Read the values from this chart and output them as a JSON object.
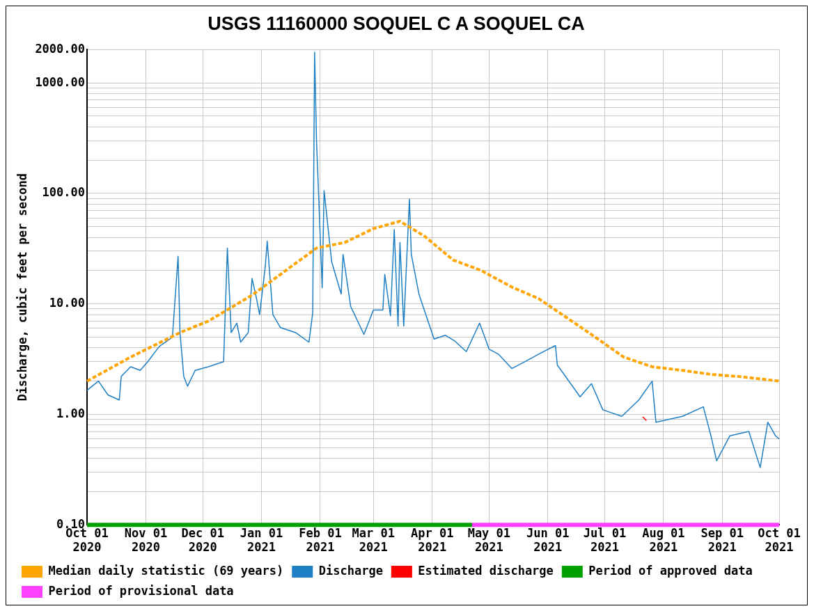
{
  "chart_data": {
    "type": "line",
    "title": "USGS 11160000 SOQUEL C A SOQUEL CA",
    "ylabel": "Discharge, cubic feet per second",
    "log": "y",
    "grid": true,
    "legend": "bottom",
    "marker": "none",
    "xlim": [
      "2020-10-01",
      "2021-10-01"
    ],
    "xticks": [
      {
        "value": "2020-10-01",
        "label": "Oct 01\n2020"
      },
      {
        "value": "2020-11-01",
        "label": "Nov 01\n2020"
      },
      {
        "value": "2020-12-01",
        "label": "Dec 01\n2020"
      },
      {
        "value": "2021-01-01",
        "label": "Jan 01\n2021"
      },
      {
        "value": "2021-02-01",
        "label": "Feb 01\n2021"
      },
      {
        "value": "2021-03-01",
        "label": "Mar 01\n2021"
      },
      {
        "value": "2021-04-01",
        "label": "Apr 01\n2021"
      },
      {
        "value": "2021-05-01",
        "label": "May 01\n2021"
      },
      {
        "value": "2021-06-01",
        "label": "Jun 01\n2021"
      },
      {
        "value": "2021-07-01",
        "label": "Jul 01\n2021"
      },
      {
        "value": "2021-08-01",
        "label": "Aug 01\n2021"
      },
      {
        "value": "2021-09-01",
        "label": "Sep 01\n2021"
      },
      {
        "value": "2021-10-01",
        "label": "Oct 01\n2021"
      }
    ],
    "ylim": [
      0.1,
      2000
    ],
    "yticks": [
      {
        "value": 0.1,
        "label": "0.10"
      },
      {
        "value": 0.2,
        "label": null
      },
      {
        "value": 0.3,
        "label": null
      },
      {
        "value": 0.4,
        "label": null
      },
      {
        "value": 0.5,
        "label": null
      },
      {
        "value": 0.6,
        "label": null
      },
      {
        "value": 0.7,
        "label": null
      },
      {
        "value": 0.8,
        "label": null
      },
      {
        "value": 0.9,
        "label": null
      },
      {
        "value": 1,
        "label": "1.00"
      },
      {
        "value": 2,
        "label": null
      },
      {
        "value": 3,
        "label": null
      },
      {
        "value": 4,
        "label": null
      },
      {
        "value": 5,
        "label": null
      },
      {
        "value": 6,
        "label": null
      },
      {
        "value": 7,
        "label": null
      },
      {
        "value": 8,
        "label": null
      },
      {
        "value": 9,
        "label": null
      },
      {
        "value": 10,
        "label": "10.00"
      },
      {
        "value": 20,
        "label": null
      },
      {
        "value": 30,
        "label": null
      },
      {
        "value": 40,
        "label": null
      },
      {
        "value": 50,
        "label": null
      },
      {
        "value": 60,
        "label": null
      },
      {
        "value": 70,
        "label": null
      },
      {
        "value": 80,
        "label": null
      },
      {
        "value": 90,
        "label": null
      },
      {
        "value": 100,
        "label": "100.00"
      },
      {
        "value": 200,
        "label": null
      },
      {
        "value": 300,
        "label": null
      },
      {
        "value": 400,
        "label": null
      },
      {
        "value": 500,
        "label": null
      },
      {
        "value": 600,
        "label": null
      },
      {
        "value": 700,
        "label": null
      },
      {
        "value": 800,
        "label": null
      },
      {
        "value": 900,
        "label": null
      },
      {
        "value": 1000,
        "label": "1000.00"
      },
      {
        "value": 2000,
        "label": "2000.00"
      }
    ],
    "series": [
      {
        "name": "Median daily statistic (69 years)",
        "color": "#ffa500",
        "line_style": "dashed",
        "x": [
          "2020-10-01",
          "2020-10-24",
          "2020-11-19",
          "2020-12-04",
          "2020-12-27",
          "2021-01-11",
          "2021-01-30",
          "2021-02-14",
          "2021-03-01",
          "2021-03-15",
          "2021-03-28",
          "2021-04-12",
          "2021-04-27",
          "2021-05-13",
          "2021-05-27",
          "2021-06-11",
          "2021-06-26",
          "2021-07-11",
          "2021-07-26",
          "2021-08-11",
          "2021-08-26",
          "2021-09-10",
          "2021-10-01"
        ],
        "values": [
          2.0,
          3.3,
          5.5,
          7,
          12,
          18.5,
          32,
          36,
          48,
          56,
          41,
          25,
          20,
          14.2,
          11.2,
          7.5,
          5.0,
          3.3,
          2.7,
          2.5,
          2.3,
          2.2,
          2.0
        ]
      },
      {
        "name": "Discharge",
        "color": "#1f7fc4",
        "x": [
          "2020-10-01",
          "2020-10-07",
          "2020-10-12",
          "2020-10-18",
          "2020-10-19",
          "2020-10-24",
          "2020-10-29",
          "2020-11-02",
          "2020-11-08",
          "2020-11-15",
          "2020-11-18",
          "2020-11-19",
          "2020-11-21",
          "2020-11-23",
          "2020-11-27",
          "2020-12-04",
          "2020-12-12",
          "2020-12-14",
          "2020-12-16",
          "2020-12-19",
          "2020-12-21",
          "2020-12-25",
          "2020-12-27",
          "2020-12-29",
          "2020-12-31",
          "2021-01-03",
          "2021-01-04",
          "2021-01-07",
          "2021-01-11",
          "2021-01-19",
          "2021-01-26",
          "2021-01-28",
          "2021-01-29",
          "2021-01-30",
          "2021-02-02",
          "2021-02-03",
          "2021-02-07",
          "2021-02-12",
          "2021-02-13",
          "2021-02-17",
          "2021-02-24",
          "2021-03-01",
          "2021-03-06",
          "2021-03-07",
          "2021-03-10",
          "2021-03-12",
          "2021-03-14",
          "2021-03-15",
          "2021-03-17",
          "2021-03-20",
          "2021-03-21",
          "2021-03-25",
          "2021-04-02",
          "2021-04-08",
          "2021-04-13",
          "2021-04-19",
          "2021-04-26",
          "2021-05-01",
          "2021-05-06",
          "2021-05-13",
          "2021-05-20",
          "2021-05-27",
          "2021-06-05",
          "2021-06-06",
          "2021-06-18",
          "2021-06-24",
          "2021-06-30",
          "2021-07-10",
          "2021-07-19",
          "2021-07-26",
          "2021-07-28",
          "2021-08-11",
          "2021-08-22",
          "2021-08-26",
          "2021-08-29",
          "2021-09-05",
          "2021-09-15",
          "2021-09-21",
          "2021-09-25",
          "2021-09-29",
          "2021-10-01"
        ],
        "values": [
          1.65,
          2.0,
          1.5,
          1.35,
          2.2,
          2.7,
          2.5,
          3.0,
          4.1,
          5.0,
          27,
          5.5,
          2.2,
          1.8,
          2.5,
          2.7,
          3.0,
          32,
          5.5,
          6.7,
          4.5,
          5.5,
          17,
          12,
          8,
          22,
          37,
          8,
          6.1,
          5.5,
          4.5,
          8.3,
          1900,
          300,
          14,
          106,
          24,
          12.3,
          28,
          9.5,
          5.3,
          8.8,
          8.8,
          18.5,
          7.8,
          47,
          6.3,
          36,
          6.3,
          89,
          28,
          12.3,
          4.8,
          5.2,
          4.6,
          3.7,
          6.7,
          3.9,
          3.5,
          2.6,
          3.0,
          3.5,
          4.2,
          2.8,
          1.44,
          1.9,
          1.1,
          0.96,
          1.35,
          2.0,
          0.85,
          0.96,
          1.17,
          0.64,
          0.38,
          0.64,
          0.7,
          0.33,
          0.85,
          0.64,
          0.6
        ]
      },
      {
        "name": "Estimated discharge",
        "color": "#ff0000",
        "x": [
          "2021-07-21",
          "2021-07-23"
        ],
        "values": [
          0.95,
          0.88
        ]
      },
      {
        "name": "Period of approved data",
        "color": "#00a000",
        "x": [
          "2020-10-01",
          "2021-04-22"
        ],
        "values": [
          0.1,
          0.1
        ]
      },
      {
        "name": "Period of provisional data",
        "color": "#ff40ff",
        "x": [
          "2021-04-22",
          "2021-10-01"
        ],
        "values": [
          0.1,
          0.1
        ]
      }
    ]
  }
}
